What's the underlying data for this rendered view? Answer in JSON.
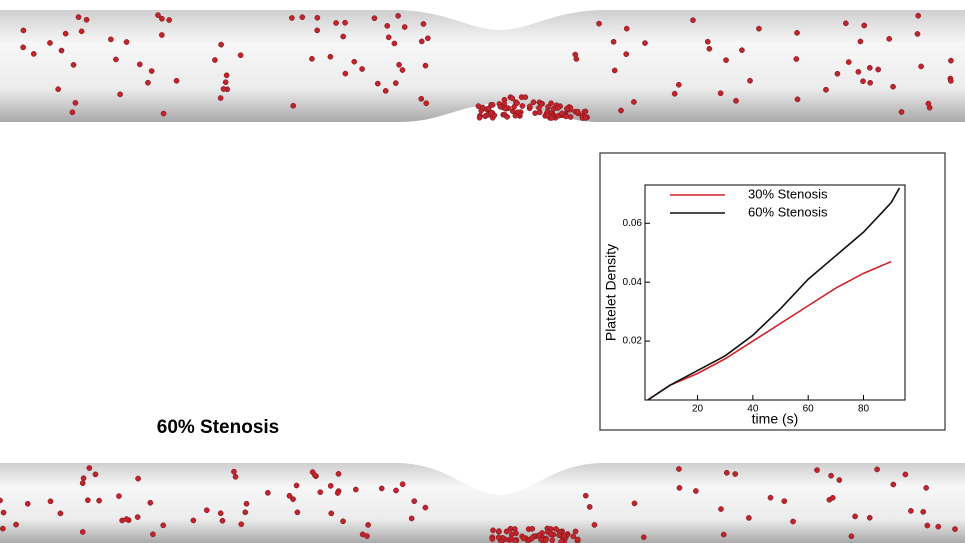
{
  "panel_label": "60% Stenosis",
  "chart_data": {
    "type": "line",
    "x_label": "time (s)",
    "y_label": "Platelet Density",
    "x": [
      2,
      10,
      20,
      30,
      40,
      50,
      60,
      70,
      80,
      90,
      93
    ],
    "series": [
      {
        "name": "30% Stenosis",
        "color": "#d2232a",
        "values": [
          0,
          0.005,
          0.009,
          0.014,
          0.02,
          0.026,
          0.032,
          0.038,
          0.043,
          0.047,
          null
        ]
      },
      {
        "name": "60% Stenosis",
        "color": "#111111",
        "values": [
          0,
          0.005,
          0.01,
          0.015,
          0.022,
          0.031,
          0.041,
          0.049,
          0.057,
          0.067,
          0.072
        ]
      }
    ],
    "xlim": [
      1,
      95
    ],
    "ylim": [
      0,
      0.073
    ],
    "xticks": [
      20,
      40,
      60,
      80
    ],
    "yticks": [
      0.02,
      0.04,
      0.06
    ],
    "legend": "upper left"
  }
}
